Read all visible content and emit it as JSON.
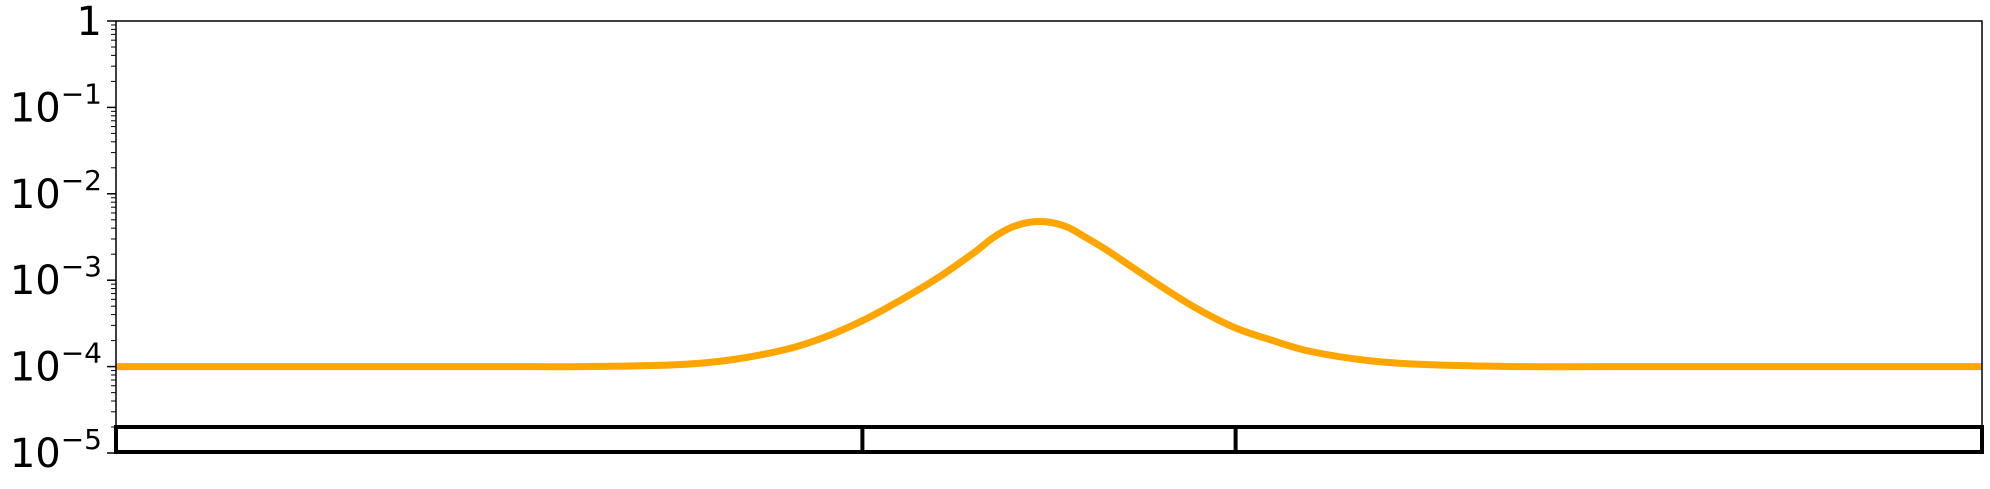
{
  "chart_data": {
    "type": "line",
    "title": "",
    "xlabel": "",
    "ylabel": "",
    "yscale": "log",
    "ylim": [
      1e-05,
      1
    ],
    "xlim": [
      0,
      100
    ],
    "grid": false,
    "legend": "none",
    "y_ticks": [
      {
        "value": 1,
        "base": "1",
        "exp": ""
      },
      {
        "value": 0.1,
        "base": "10",
        "exp": "−1"
      },
      {
        "value": 0.01,
        "base": "10",
        "exp": "−2"
      },
      {
        "value": 0.001,
        "base": "10",
        "exp": "−3"
      },
      {
        "value": 0.0001,
        "base": "10",
        "exp": "−4"
      },
      {
        "value": 1e-05,
        "base": "10",
        "exp": "−5"
      }
    ],
    "series": [
      {
        "color": "#ffa500",
        "x": [
          0,
          10,
          20,
          25,
          30,
          33,
          36,
          38,
          40,
          42,
          44,
          46,
          47,
          48,
          49,
          50,
          51,
          52,
          53,
          54,
          56,
          58,
          60,
          62,
          64,
          67,
          70,
          75,
          80,
          90,
          100
        ],
        "y": [
          0.0001,
          0.0001,
          0.0001,
          0.0001,
          0.000105,
          0.00012,
          0.00016,
          0.00022,
          0.00034,
          0.00058,
          0.00105,
          0.0021,
          0.0031,
          0.0041,
          0.0047,
          0.0047,
          0.0041,
          0.0031,
          0.0023,
          0.00165,
          0.00085,
          0.00046,
          0.00028,
          0.0002,
          0.00015,
          0.000118,
          0.000106,
          0.0001,
          0.0001,
          0.0001,
          0.0001
        ]
      }
    ],
    "segment_bar": {
      "color": "#000000",
      "dividers_x": [
        40,
        60
      ]
    }
  }
}
